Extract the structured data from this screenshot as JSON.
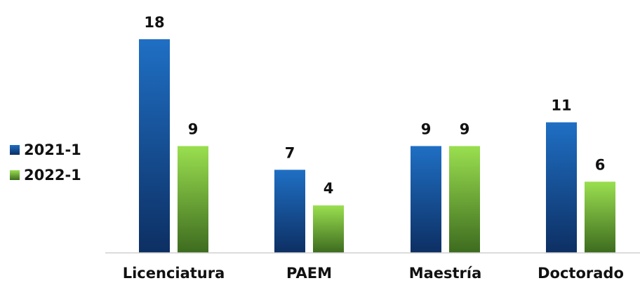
{
  "chart_data": {
    "type": "bar",
    "categories": [
      "Licenciatura",
      "PAEM",
      "Maestría",
      "Doctorado"
    ],
    "series": [
      {
        "name": "2021-1",
        "values": [
          18,
          7,
          9,
          11
        ],
        "color_top": "#1f6fc4",
        "color_bottom": "#0d2f63"
      },
      {
        "name": "2022-1",
        "values": [
          9,
          4,
          9,
          6
        ],
        "color_top": "#9adf4f",
        "color_bottom": "#3d6b1f"
      }
    ],
    "ylim": [
      0,
      18
    ],
    "grid": false,
    "legend_placement": "left",
    "title": "",
    "xlabel": "",
    "ylabel": ""
  }
}
